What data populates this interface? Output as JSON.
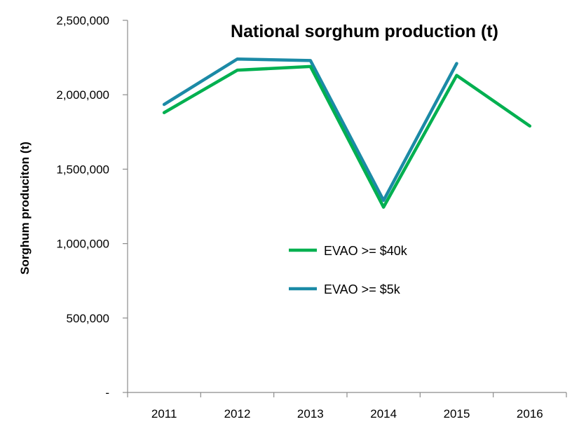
{
  "chart_data": {
    "type": "line",
    "title": "National sorghum production (t)",
    "ylabel": "Sorghum produciton (t)",
    "xlabel": "",
    "categories": [
      "2011",
      "2012",
      "2013",
      "2014",
      "2015",
      "2016"
    ],
    "ylim": [
      0,
      2500000
    ],
    "yticks": [
      0,
      500000,
      1000000,
      1500000,
      2000000,
      2500000
    ],
    "ytick_labels": [
      "-",
      "500,000",
      "1,000,000",
      "1,500,000",
      "2,000,000",
      "2,500,000"
    ],
    "grid": false,
    "legend_position": "center",
    "series": [
      {
        "name": "EVAO >= $40k",
        "color": "#00b050",
        "values": [
          1880000,
          2165000,
          2190000,
          1245000,
          2130000,
          1790000
        ]
      },
      {
        "name": "EVAO >= $5k",
        "color": "#1b8aa6",
        "values": [
          1935000,
          2240000,
          2230000,
          1290000,
          2210000,
          null
        ]
      }
    ]
  }
}
